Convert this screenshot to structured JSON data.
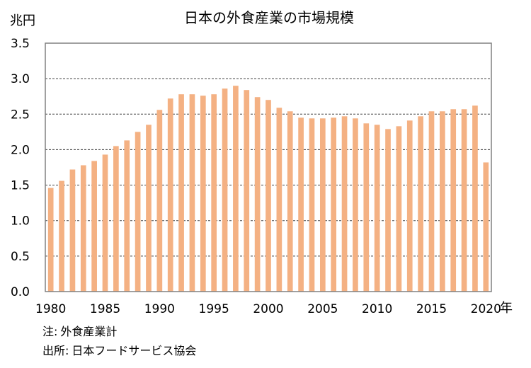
{
  "chart_data": {
    "type": "bar",
    "title": "日本の外食産業の市場規模",
    "ylabel": "兆円",
    "xlabel": "年",
    "ylim": [
      0,
      3.5
    ],
    "yticks": [
      "0.0",
      "0.5",
      "1.0",
      "1.5",
      "2.0",
      "2.5",
      "3.0",
      "3.5"
    ],
    "xticks": [
      "1980",
      "1985",
      "1990",
      "1995",
      "2000",
      "2005",
      "2010",
      "2015",
      "2020"
    ],
    "grid": true,
    "bar_color": "#F4B183",
    "categories": [
      1980,
      1981,
      1982,
      1983,
      1984,
      1985,
      1986,
      1987,
      1988,
      1989,
      1990,
      1991,
      1992,
      1993,
      1994,
      1995,
      1996,
      1997,
      1998,
      1999,
      2000,
      2001,
      2002,
      2003,
      2004,
      2005,
      2006,
      2007,
      2008,
      2009,
      2010,
      2011,
      2012,
      2013,
      2014,
      2015,
      2016,
      2017,
      2018,
      2019,
      2020
    ],
    "values": [
      1.46,
      1.56,
      1.72,
      1.78,
      1.84,
      1.93,
      2.05,
      2.13,
      2.25,
      2.35,
      2.56,
      2.72,
      2.78,
      2.78,
      2.76,
      2.78,
      2.86,
      2.9,
      2.84,
      2.74,
      2.7,
      2.59,
      2.54,
      2.45,
      2.44,
      2.44,
      2.45,
      2.47,
      2.44,
      2.37,
      2.35,
      2.29,
      2.33,
      2.41,
      2.47,
      2.54,
      2.54,
      2.57,
      2.57,
      2.62,
      1.82
    ]
  },
  "notes": {
    "note_label": "注:",
    "note_text": "外食産業計",
    "source_label": "出所:",
    "source_text": "日本フードサービス協会"
  }
}
